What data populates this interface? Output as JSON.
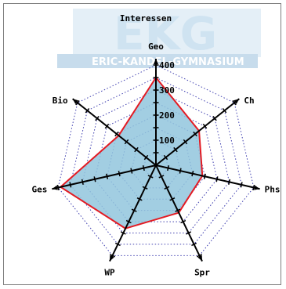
{
  "watermark": {
    "logo_text": "EKG",
    "school_name": "ERIC-KANDEL-GYMNASIUM"
  },
  "chart_data": {
    "type": "radar",
    "title": "Interessen",
    "axes": [
      "Geo",
      "Ch",
      "Phs",
      "Spr",
      "WP",
      "Ges",
      "Bio"
    ],
    "values": [
      350,
      220,
      190,
      210,
      280,
      390,
      190
    ],
    "rmax": 400,
    "ticks": [
      100,
      200,
      300,
      400
    ],
    "tick_labels": [
      "100",
      "200",
      "300",
      "400"
    ],
    "grid": true,
    "colors": {
      "fill": "#92c6dd",
      "outline": "#e31b23",
      "grid": "#4040b0",
      "axis": "#000000",
      "watermark": "#cfe3f1"
    }
  }
}
